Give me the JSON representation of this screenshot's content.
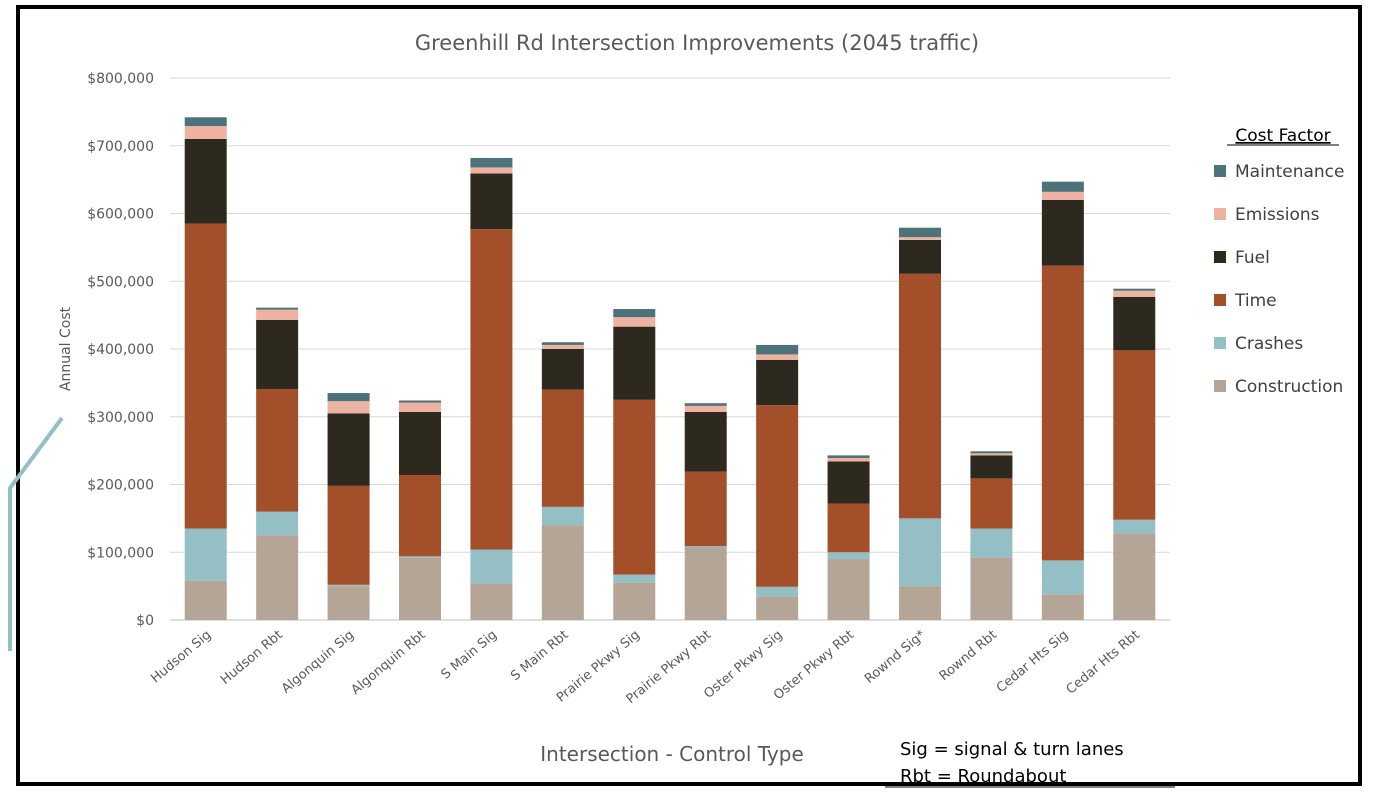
{
  "chart_data": {
    "type": "bar",
    "stacked": true,
    "title": "Greenhill Rd  Intersection Improvements (2045 traffic)",
    "xlabel": "Intersection - Control Type",
    "ylabel": "Annual Cost",
    "ylim": [
      0,
      800000
    ],
    "y_ticks": [
      "$0",
      "$100,000",
      "$200,000",
      "$300,000",
      "$400,000",
      "$500,000",
      "$600,000",
      "$700,000",
      "$800,000"
    ],
    "grid": true,
    "legend_title": "Cost Factor",
    "legend_position": "right",
    "categories": [
      "Hudson Sig",
      "Hudson Rbt",
      "Algonquin Sig",
      "Algonquin Rbt",
      "S Main Sig",
      "S Main Rbt",
      "Prairie Pkwy Sig",
      "Prairie Pkwy Rbt",
      "Oster Pkwy Sig",
      "Oster Pkwy Rbt",
      "Rownd Sig*",
      "Rownd Rbt",
      "Cedar Hts Sig",
      "Cedar Hts Rbt"
    ],
    "series": [
      {
        "name": "Construction",
        "color": "#B5A597",
        "values": [
          58000,
          125000,
          50000,
          92000,
          54000,
          140000,
          55000,
          107000,
          35000,
          90000,
          50000,
          92000,
          38000,
          128000
        ]
      },
      {
        "name": "Crashes",
        "color": "#93BFC5",
        "values": [
          77000,
          35000,
          2000,
          2000,
          50000,
          27000,
          12000,
          2000,
          14000,
          10000,
          100000,
          43000,
          50000,
          20000
        ]
      },
      {
        "name": "Time",
        "color": "#A3502A",
        "values": [
          450000,
          181000,
          146000,
          120000,
          473000,
          173000,
          258000,
          110000,
          268000,
          72000,
          361000,
          74000,
          435000,
          250000
        ]
      },
      {
        "name": "Fuel",
        "color": "#2E291F",
        "values": [
          125000,
          102000,
          107000,
          93000,
          82000,
          60000,
          108000,
          88000,
          67000,
          62000,
          50000,
          34000,
          97000,
          79000
        ]
      },
      {
        "name": "Emissions",
        "color": "#EDB2A1",
        "values": [
          19000,
          15000,
          18000,
          14000,
          9000,
          6000,
          14000,
          9000,
          8000,
          5000,
          4000,
          3000,
          12000,
          9000
        ]
      },
      {
        "name": "Maintenance",
        "color": "#4C7379",
        "values": [
          13000,
          3000,
          12000,
          3000,
          14000,
          4000,
          12000,
          4000,
          14000,
          4000,
          14000,
          3000,
          15000,
          3000
        ]
      }
    ]
  },
  "legend_order": [
    "Maintenance",
    "Emissions",
    "Fuel",
    "Time",
    "Crashes",
    "Construction"
  ],
  "notes": [
    "Sig = signal & turn lanes",
    "Rbt = Roundabout"
  ]
}
